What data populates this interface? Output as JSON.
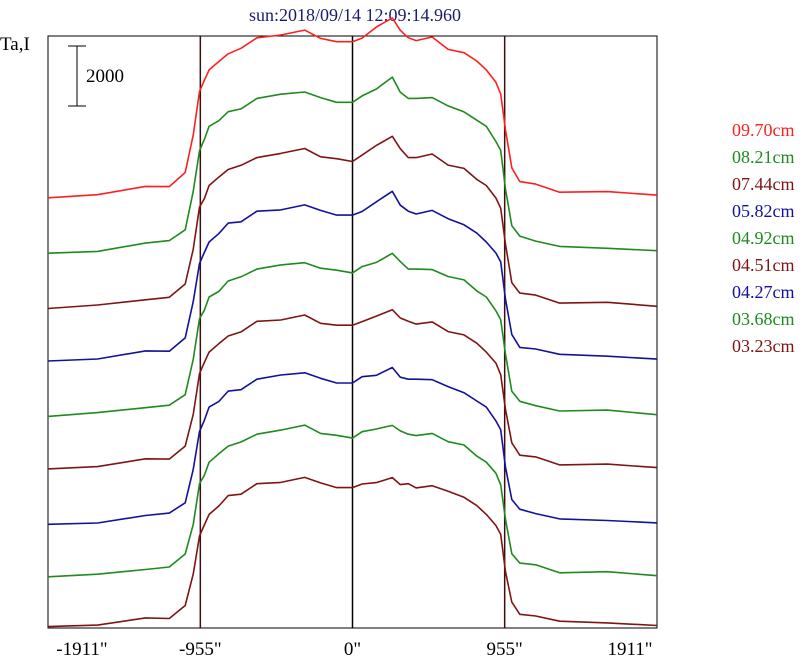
{
  "chart_data": {
    "type": "line",
    "title": "sun:2018/09/14 12:09:14.960",
    "ylabel": "Ta,I",
    "scale_bar": {
      "label": "2000",
      "value": 2000
    },
    "x_ticks": [
      {
        "value": -1911,
        "label": "-1911\""
      },
      {
        "value": -955,
        "label": "-955\""
      },
      {
        "value": 0,
        "label": "0\""
      },
      {
        "value": 955,
        "label": "955\""
      },
      {
        "value": 1911,
        "label": "1911\""
      }
    ],
    "vlines": [
      -955,
      0,
      955
    ],
    "xlim": [
      -1911,
      1911
    ],
    "ylim": [
      -1050,
      20350
    ],
    "profile_x": [
      -1911,
      -1600,
      -1300,
      -1150,
      -1050,
      -1000,
      -960,
      -930,
      -900,
      -840,
      -780,
      -700,
      -600,
      -450,
      -300,
      -200,
      -100,
      0,
      60,
      150,
      250,
      300,
      350,
      400,
      500,
      600,
      700,
      780,
      840,
      900,
      930,
      960,
      1000,
      1050,
      1150,
      1300,
      1600,
      1911
    ],
    "series": [
      {
        "name": "09.70cm",
        "color": "#ff1f1f",
        "offset": 14500,
        "values": [
          0,
          160,
          330,
          470,
          850,
          2350,
          3800,
          4250,
          4600,
          4950,
          5200,
          5450,
          5700,
          5950,
          6000,
          5850,
          5600,
          5650,
          5750,
          6200,
          6500,
          6100,
          5700,
          5750,
          5750,
          5450,
          5200,
          4950,
          4600,
          4200,
          3750,
          2500,
          1000,
          650,
          430,
          290,
          180,
          100
        ]
      },
      {
        "name": "08.21cm",
        "color": "#1f8a1f",
        "offset": 12500,
        "values": [
          0,
          150,
          320,
          460,
          820,
          2250,
          3700,
          4150,
          4500,
          4850,
          5050,
          5300,
          5550,
          5750,
          5800,
          5650,
          5450,
          5500,
          5600,
          6000,
          6300,
          5900,
          5550,
          5600,
          5600,
          5350,
          5100,
          4850,
          4500,
          4100,
          3650,
          2400,
          950,
          620,
          410,
          270,
          170,
          90
        ]
      },
      {
        "name": "07.44cm",
        "color": "#7f1414",
        "offset": 10500,
        "values": [
          0,
          150,
          310,
          450,
          800,
          2200,
          3600,
          4050,
          4400,
          4750,
          5000,
          5200,
          5450,
          5650,
          5700,
          5550,
          5350,
          5400,
          5500,
          5900,
          6200,
          5800,
          5450,
          5500,
          5500,
          5250,
          5000,
          4750,
          4400,
          4000,
          3600,
          2350,
          930,
          600,
          400,
          260,
          160,
          80
        ]
      },
      {
        "name": "05.82cm",
        "color": "#12129a",
        "offset": 8600,
        "values": [
          0,
          140,
          300,
          440,
          790,
          2150,
          3500,
          3950,
          4300,
          4650,
          4900,
          5100,
          5350,
          5550,
          5600,
          5450,
          5250,
          5300,
          5400,
          5800,
          6050,
          5700,
          5350,
          5400,
          5400,
          5150,
          4900,
          4650,
          4300,
          3950,
          3500,
          2300,
          900,
          580,
          390,
          250,
          150,
          70
        ]
      },
      {
        "name": "04.92cm",
        "color": "#1f8a1f",
        "offset": 6600,
        "values": [
          0,
          140,
          290,
          430,
          780,
          2100,
          3450,
          3900,
          4250,
          4600,
          4850,
          5050,
          5300,
          5500,
          5550,
          5400,
          5200,
          5250,
          5350,
          5650,
          5850,
          5600,
          5300,
          5350,
          5300,
          5100,
          4850,
          4600,
          4250,
          3900,
          3450,
          2250,
          880,
          570,
          380,
          240,
          140,
          60
        ]
      },
      {
        "name": "04.51cm",
        "color": "#7f1414",
        "offset": 4700,
        "values": [
          0,
          130,
          280,
          420,
          760,
          2050,
          3400,
          3850,
          4200,
          4550,
          4800,
          5000,
          5250,
          5450,
          5500,
          5350,
          5150,
          5200,
          5300,
          5550,
          5750,
          5500,
          5250,
          5300,
          5250,
          5050,
          4800,
          4550,
          4200,
          3850,
          3400,
          2200,
          860,
          560,
          370,
          230,
          130,
          50
        ]
      },
      {
        "name": "04.27cm",
        "color": "#12129a",
        "offset": 2700,
        "values": [
          0,
          130,
          270,
          410,
          750,
          2000,
          3350,
          3800,
          4150,
          4500,
          4750,
          4950,
          5200,
          5400,
          5450,
          5300,
          5100,
          5150,
          5250,
          5450,
          5600,
          5400,
          5200,
          5250,
          5200,
          5000,
          4750,
          4500,
          4150,
          3800,
          3350,
          2150,
          850,
          550,
          360,
          220,
          130,
          50
        ]
      },
      {
        "name": "03.68cm",
        "color": "#1f8a1f",
        "offset": 800,
        "values": [
          0,
          120,
          260,
          400,
          740,
          1950,
          3300,
          3750,
          4100,
          4450,
          4700,
          4900,
          5150,
          5350,
          5400,
          5250,
          5050,
          5100,
          5200,
          5350,
          5450,
          5300,
          5150,
          5150,
          5100,
          4950,
          4700,
          4450,
          4100,
          3750,
          3300,
          2100,
          830,
          540,
          350,
          210,
          120,
          40
        ]
      },
      {
        "name": "03.23cm",
        "color": "#7f1414",
        "offset": -1000,
        "values": [
          0,
          120,
          250,
          380,
          720,
          1900,
          3250,
          3700,
          4050,
          4400,
          4650,
          4850,
          5100,
          5300,
          5350,
          5200,
          5000,
          5050,
          5150,
          5250,
          5300,
          5200,
          5100,
          5100,
          5050,
          4900,
          4650,
          4400,
          4050,
          3700,
          3250,
          2050,
          820,
          530,
          340,
          200,
          110,
          40
        ]
      }
    ]
  }
}
